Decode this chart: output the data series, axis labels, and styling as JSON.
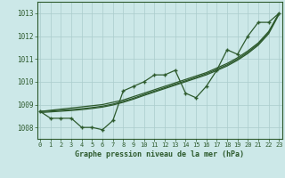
{
  "xlabel": "Graphe pression niveau de la mer (hPa)",
  "bg_color": "#cce8e8",
  "grid_color": "#aacccc",
  "line_color": "#2d5a2d",
  "x_values": [
    0,
    1,
    2,
    3,
    4,
    5,
    6,
    7,
    8,
    9,
    10,
    11,
    12,
    13,
    14,
    15,
    16,
    17,
    18,
    19,
    20,
    21,
    22,
    23
  ],
  "main_line": [
    1008.7,
    1008.4,
    1008.4,
    1008.4,
    1008.0,
    1008.0,
    1007.9,
    1008.3,
    1009.6,
    1009.8,
    1010.0,
    1010.3,
    1010.3,
    1010.5,
    1009.5,
    1009.3,
    1009.8,
    1010.5,
    1011.4,
    1011.2,
    1012.0,
    1012.6,
    1012.6,
    1013.0
  ],
  "trend_line1": [
    1008.7,
    1008.75,
    1008.8,
    1008.85,
    1008.9,
    1008.95,
    1009.0,
    1009.1,
    1009.2,
    1009.35,
    1009.5,
    1009.65,
    1009.8,
    1009.95,
    1010.1,
    1010.25,
    1010.4,
    1010.6,
    1010.8,
    1011.05,
    1011.35,
    1011.7,
    1012.2,
    1013.0
  ],
  "trend_line2": [
    1008.7,
    1008.72,
    1008.75,
    1008.78,
    1008.82,
    1008.87,
    1008.93,
    1009.02,
    1009.14,
    1009.28,
    1009.44,
    1009.59,
    1009.74,
    1009.89,
    1010.04,
    1010.19,
    1010.35,
    1010.54,
    1010.74,
    1010.99,
    1011.29,
    1011.65,
    1012.15,
    1013.0
  ],
  "trend_line3": [
    1008.65,
    1008.68,
    1008.71,
    1008.74,
    1008.78,
    1008.83,
    1008.89,
    1008.98,
    1009.1,
    1009.24,
    1009.4,
    1009.55,
    1009.7,
    1009.85,
    1010.0,
    1010.15,
    1010.3,
    1010.49,
    1010.69,
    1010.94,
    1011.24,
    1011.6,
    1012.1,
    1012.95
  ],
  "ylim": [
    1007.5,
    1013.5
  ],
  "yticks": [
    1008,
    1009,
    1010,
    1011,
    1012,
    1013
  ],
  "xticks": [
    0,
    1,
    2,
    3,
    4,
    5,
    6,
    7,
    8,
    9,
    10,
    11,
    12,
    13,
    14,
    15,
    16,
    17,
    18,
    19,
    20,
    21,
    22,
    23
  ],
  "xlim": [
    -0.3,
    23.3
  ]
}
